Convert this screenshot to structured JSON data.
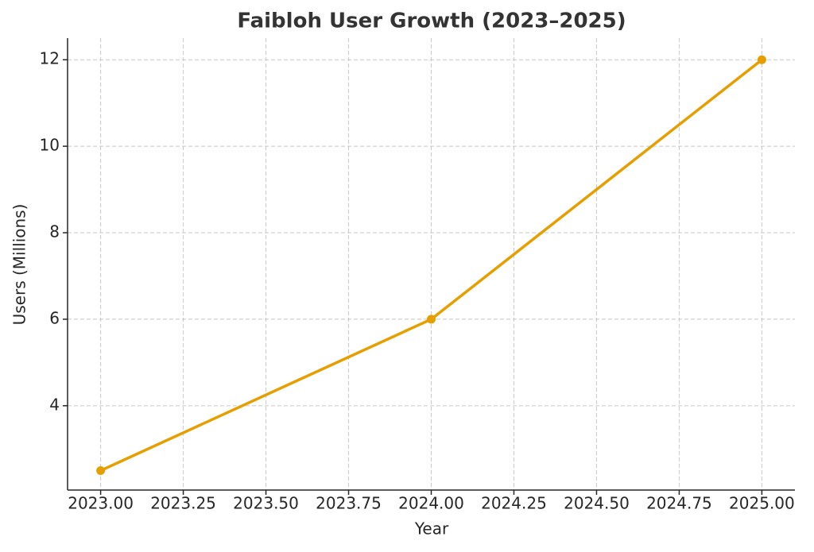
{
  "chart_data": {
    "type": "line",
    "title": "Faibloh User Growth (2023–2025)",
    "x_label": "Year",
    "y_label": "Users (Millions)",
    "x": [
      2023,
      2024,
      2025
    ],
    "series": [
      {
        "name": "Users",
        "color": "#e69f00",
        "values": [
          2.5,
          6,
          12
        ]
      }
    ],
    "xlim": [
      2022.9,
      2025.1
    ],
    "xticks": [
      {
        "value": 2023,
        "label": "2023.00"
      },
      {
        "value": 2023.25,
        "label": "2023.25"
      },
      {
        "value": 2023.5,
        "label": "2023.50"
      },
      {
        "value": 2023.75,
        "label": "2023.75"
      },
      {
        "value": 2024,
        "label": "2024.00"
      },
      {
        "value": 2024.25,
        "label": "2024.25"
      },
      {
        "value": 2024.5,
        "label": "2024.50"
      },
      {
        "value": 2024.75,
        "label": "2024.75"
      },
      {
        "value": 2025,
        "label": "2025.00"
      }
    ],
    "ylim": [
      2.05,
      12.5
    ],
    "yticks": [
      4,
      6,
      8,
      10,
      12
    ],
    "grid": true
  }
}
